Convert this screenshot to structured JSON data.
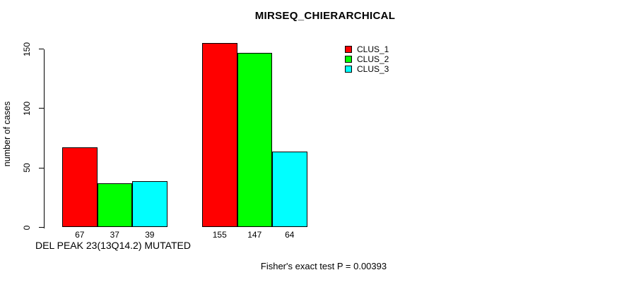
{
  "title": "MIRSEQ_CHIERARCHICAL",
  "y_axis": {
    "label": "number of cases",
    "ticks": [
      0,
      50,
      100,
      150
    ]
  },
  "x_axis": {
    "label": "DEL PEAK 23(13Q14.2) MUTATED"
  },
  "legend": {
    "items": [
      {
        "label": "CLUS_1",
        "color": "#FF0000"
      },
      {
        "label": "CLUS_2",
        "color": "#00FF00"
      },
      {
        "label": "CLUS_3",
        "color": "#00FFFF"
      }
    ]
  },
  "footer": {
    "text": "Fisher's exact test P = 0.00393"
  },
  "chart_data": {
    "type": "bar",
    "title": "MIRSEQ_CHIERARCHICAL",
    "xlabel": "DEL PEAK 23(13Q14.2) MUTATED",
    "ylabel": "number of cases",
    "ylim": [
      0,
      155
    ],
    "yticks": [
      0,
      50,
      100,
      150
    ],
    "grid": false,
    "legend_position": "top-right",
    "group_count": 2,
    "series": [
      {
        "name": "CLUS_1",
        "color": "#FF0000",
        "values": [
          67,
          155
        ]
      },
      {
        "name": "CLUS_2",
        "color": "#00FF00",
        "values": [
          37,
          147
        ]
      },
      {
        "name": "CLUS_3",
        "color": "#00FFFF",
        "values": [
          39,
          64
        ]
      }
    ],
    "bar_value_labels": [
      [
        67,
        37,
        39
      ],
      [
        155,
        147,
        64
      ]
    ]
  }
}
